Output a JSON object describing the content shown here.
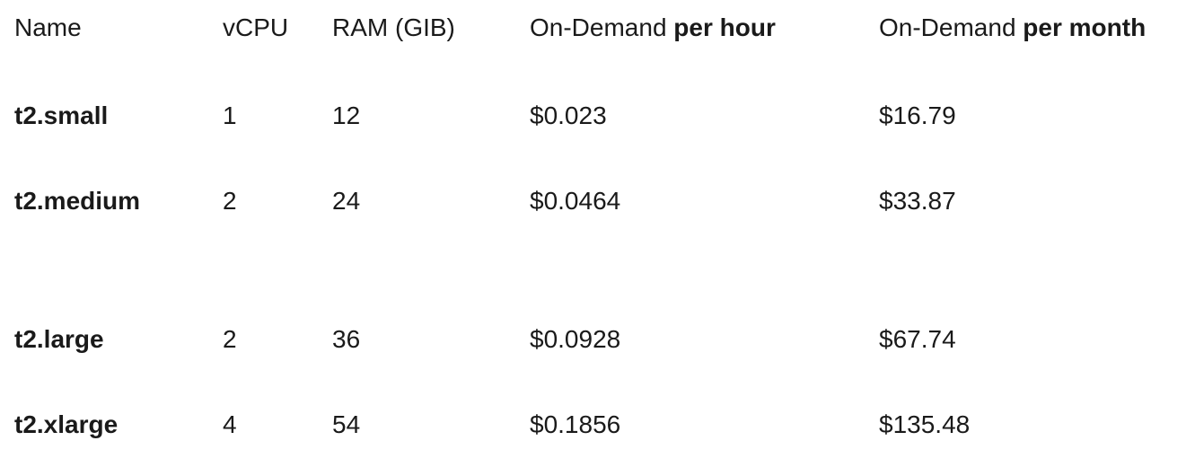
{
  "table": {
    "headers": {
      "name": "Name",
      "vcpu": "vCPU",
      "ram": "RAM (GIB)",
      "hour_prefix": "On-Demand ",
      "hour_bold": "per hour",
      "month_prefix": "On-Demand ",
      "month_bold": "per month"
    },
    "rows": [
      {
        "name": "t2.small",
        "vcpu": "1",
        "ram": "12",
        "hour": "$0.023",
        "month": "$16.79"
      },
      {
        "name": "t2.medium",
        "vcpu": "2",
        "ram": "24",
        "hour": "$0.0464",
        "month": "$33.87"
      },
      {
        "name": "t2.large",
        "vcpu": "2",
        "ram": "36",
        "hour": "$0.0928",
        "month": "$67.74"
      },
      {
        "name": "t2.xlarge",
        "vcpu": "4",
        "ram": "54",
        "hour": "$0.1856",
        "month": "$135.48"
      }
    ]
  }
}
